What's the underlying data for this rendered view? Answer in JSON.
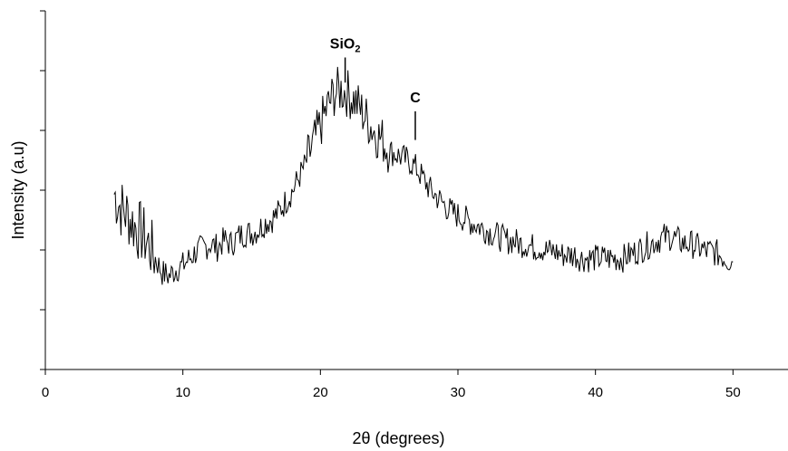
{
  "chart_data": {
    "type": "line",
    "title": "",
    "xlabel": "2θ (degrees)",
    "ylabel": "Intensity (a.u)",
    "xlim": [
      0,
      54
    ],
    "ylim": [
      0,
      1
    ],
    "x_ticks": [
      0,
      10,
      20,
      30,
      40,
      50
    ],
    "x_tick_labels": [
      "0",
      "10",
      "20",
      "30",
      "40",
      "50"
    ],
    "y_tick_count": 6,
    "y_tick_labels_shown": false,
    "grid": false,
    "legend": "none",
    "line_color": "#000000",
    "series": [
      {
        "values_note": "",
        "x": [
          5,
          5.5,
          6,
          6.5,
          7,
          7.5,
          8,
          8.5,
          9,
          9.5,
          10,
          10.5,
          11,
          11.5,
          12,
          12.5,
          13,
          13.5,
          14,
          14.5,
          15,
          15.5,
          16,
          16.5,
          17,
          17.5,
          18,
          18.5,
          19,
          19.5,
          20,
          20.5,
          21,
          21.5,
          22,
          22.5,
          23,
          23.5,
          24,
          24.5,
          25,
          25.5,
          26,
          26.5,
          27,
          27.5,
          28,
          28.5,
          29,
          29.5,
          30,
          30.5,
          31,
          31.5,
          32,
          32.5,
          33,
          33.5,
          34,
          34.5,
          35,
          35.5,
          36,
          36.5,
          37,
          37.5,
          38,
          38.5,
          39,
          39.5,
          40,
          40.5,
          41,
          41.5,
          42,
          42.5,
          43,
          43.5,
          44,
          44.5,
          45,
          45.5,
          46,
          46.5,
          47,
          47.5,
          48,
          48.5,
          49,
          49.5,
          50
        ],
        "y": [
          0.49,
          0.45,
          0.43,
          0.4,
          0.38,
          0.35,
          0.31,
          0.27,
          0.26,
          0.28,
          0.29,
          0.31,
          0.33,
          0.34,
          0.35,
          0.34,
          0.36,
          0.35,
          0.37,
          0.38,
          0.38,
          0.39,
          0.41,
          0.42,
          0.44,
          0.47,
          0.5,
          0.54,
          0.58,
          0.63,
          0.68,
          0.73,
          0.77,
          0.78,
          0.77,
          0.75,
          0.72,
          0.69,
          0.66,
          0.64,
          0.61,
          0.6,
          0.59,
          0.58,
          0.56,
          0.53,
          0.5,
          0.48,
          0.46,
          0.44,
          0.43,
          0.42,
          0.41,
          0.4,
          0.39,
          0.38,
          0.37,
          0.36,
          0.36,
          0.35,
          0.35,
          0.34,
          0.34,
          0.33,
          0.33,
          0.32,
          0.32,
          0.32,
          0.31,
          0.31,
          0.31,
          0.31,
          0.31,
          0.31,
          0.31,
          0.32,
          0.33,
          0.34,
          0.35,
          0.36,
          0.37,
          0.37,
          0.36,
          0.35,
          0.35,
          0.34,
          0.33,
          0.33,
          0.32,
          0.31,
          0.3
        ]
      }
    ],
    "annotations": [
      {
        "label": "SiO",
        "subscript": "2",
        "x": 21.8,
        "marker_top": 0.87,
        "marker_bottom": 0.8
      },
      {
        "label": "C",
        "subscript": "",
        "x": 26.9,
        "marker_top": 0.72,
        "marker_bottom": 0.64
      }
    ]
  }
}
